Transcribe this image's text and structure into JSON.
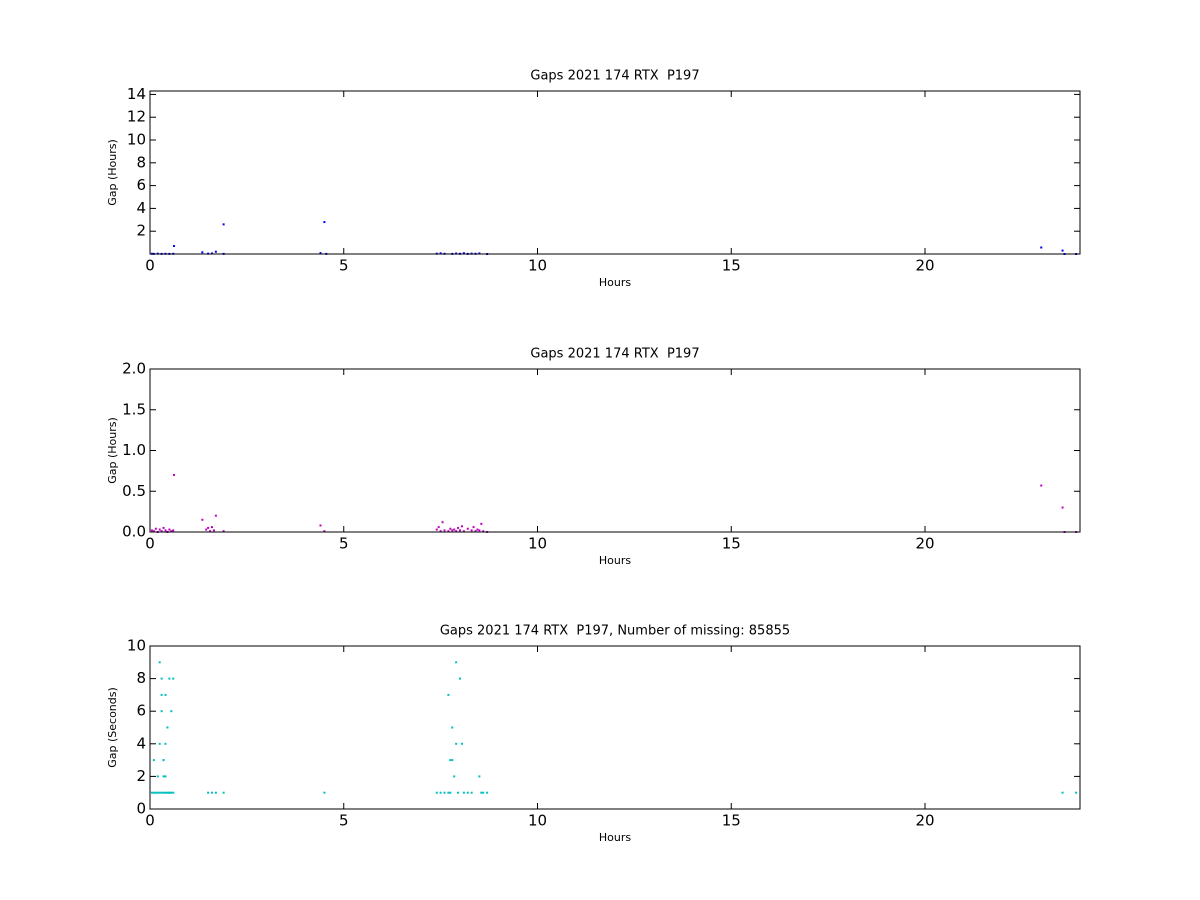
{
  "chart_data": [
    {
      "type": "scatter",
      "title": "Gaps 2021 174 RTX  P197",
      "xlabel": "Hours",
      "ylabel": "Gap (Hours)",
      "color": "#0000ff",
      "xlim": [
        0,
        24
      ],
      "xticks": [
        0,
        5,
        10,
        15,
        20
      ],
      "ylim": [
        0,
        14.3
      ],
      "yticks": [
        2,
        4,
        6,
        8,
        10,
        12,
        14
      ],
      "x": [
        0.05,
        0.1,
        0.2,
        0.3,
        0.4,
        0.5,
        0.6,
        0.62,
        1.35,
        1.5,
        1.6,
        1.7,
        1.9,
        1.9,
        4.4,
        4.5,
        4.55,
        7.4,
        7.5,
        7.6,
        7.8,
        7.9,
        8.0,
        8.1,
        8.2,
        8.3,
        8.4,
        8.5,
        8.7,
        23.0,
        23.55,
        23.6,
        23.9
      ],
      "values": [
        0.02,
        0.01,
        0.03,
        0.01,
        0.02,
        0.01,
        0.02,
        0.7,
        0.15,
        0.03,
        0.05,
        0.2,
        0.01,
        2.6,
        0.08,
        2.8,
        0.01,
        0.03,
        0.06,
        0.02,
        0.01,
        0.04,
        0.02,
        0.07,
        0.01,
        0.03,
        0.02,
        0.05,
        0.0,
        0.57,
        0.3,
        0.0,
        0.0
      ]
    },
    {
      "type": "scatter",
      "title": "Gaps 2021 174 RTX  P197",
      "xlabel": "Hours",
      "ylabel": "Gap (Hours)",
      "color": "#bf00bf",
      "xlim": [
        0,
        24
      ],
      "xticks": [
        0,
        5,
        10,
        15,
        20
      ],
      "ylim": [
        0,
        2
      ],
      "yticks": [
        {
          "value": 0,
          "label": "0.0"
        },
        0.5,
        {
          "value": 1,
          "label": "1.0"
        },
        1.5,
        {
          "value": 2,
          "label": "2.0"
        }
      ],
      "x": [
        0.05,
        0.1,
        0.15,
        0.2,
        0.25,
        0.3,
        0.35,
        0.4,
        0.45,
        0.5,
        0.55,
        0.6,
        0.62,
        1.35,
        1.45,
        1.5,
        1.55,
        1.6,
        1.65,
        1.7,
        1.9,
        4.4,
        4.5,
        7.4,
        7.45,
        7.5,
        7.55,
        7.6,
        7.7,
        7.75,
        7.8,
        7.85,
        7.9,
        7.95,
        8.0,
        8.05,
        8.1,
        8.2,
        8.3,
        8.35,
        8.4,
        8.45,
        8.5,
        8.55,
        8.6,
        8.7,
        23.0,
        23.55,
        23.6,
        23.9
      ],
      "values": [
        0.02,
        0.01,
        0.04,
        0.0,
        0.03,
        0.01,
        0.05,
        0.02,
        0.0,
        0.03,
        0.01,
        0.02,
        0.7,
        0.15,
        0.03,
        0.05,
        0.01,
        0.06,
        0.02,
        0.2,
        0.01,
        0.08,
        0.01,
        0.03,
        0.06,
        0.01,
        0.12,
        0.02,
        0.01,
        0.04,
        0.02,
        0.03,
        0.01,
        0.05,
        0.02,
        0.07,
        0.01,
        0.04,
        0.02,
        0.06,
        0.01,
        0.03,
        0.02,
        0.1,
        0.01,
        0.0,
        0.57,
        0.3,
        0.0,
        0.0
      ]
    },
    {
      "type": "scatter",
      "title": "Gaps 2021 174 RTX  P197, Number of missing: 85855",
      "xlabel": "Hours",
      "ylabel": "Gap (Seconds)",
      "color": "#00bfbf",
      "xlim": [
        0,
        24
      ],
      "xticks": [
        0,
        5,
        10,
        15,
        20
      ],
      "ylim": [
        0,
        10
      ],
      "yticks": [
        0,
        2,
        4,
        6,
        8,
        10
      ],
      "x": [
        0.05,
        0.1,
        0.15,
        0.2,
        0.25,
        0.3,
        0.35,
        0.4,
        0.45,
        0.5,
        0.55,
        0.6,
        0.1,
        0.2,
        0.25,
        0.3,
        0.35,
        0.4,
        0.45,
        0.5,
        0.25,
        0.3,
        0.35,
        0.4,
        0.3,
        0.35,
        0.4,
        0.45,
        0.5,
        0.55,
        0.6,
        1.5,
        1.6,
        1.7,
        1.9,
        4.5,
        7.4,
        7.5,
        7.6,
        7.7,
        7.75,
        7.7,
        7.8,
        7.75,
        7.85,
        7.8,
        7.9,
        7.95,
        7.9,
        8.0,
        8.1,
        8.2,
        8.05,
        8.3,
        8.5,
        8.55,
        8.6,
        8.7,
        23.55,
        23.9
      ],
      "values": [
        1,
        1,
        1,
        1,
        1,
        1,
        1,
        1,
        1,
        1,
        1,
        1,
        3,
        2,
        4,
        6,
        3,
        2,
        5,
        8,
        9,
        7,
        2,
        4,
        8,
        3,
        7,
        5,
        1,
        6,
        8,
        1,
        1,
        1,
        1,
        1,
        1,
        1,
        1,
        1,
        3,
        7,
        5,
        1,
        2,
        3,
        9,
        1,
        4,
        8,
        1,
        1,
        4,
        1,
        2,
        1,
        1,
        1,
        1,
        1
      ]
    }
  ]
}
